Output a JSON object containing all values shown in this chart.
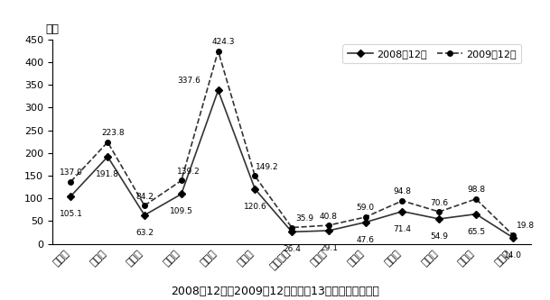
{
  "categories": [
    "南京市",
    "无锡市",
    "徐州市",
    "常州市",
    "苏州市",
    "南通市",
    "连云港市",
    "淮安市",
    "盐城市",
    "扬州市",
    "镇江市",
    "泰州市",
    "宿迁市"
  ],
  "series_2008": [
    105.1,
    191.8,
    63.2,
    109.5,
    337.6,
    120.6,
    26.4,
    29.1,
    47.6,
    71.4,
    54.9,
    65.5,
    14.0
  ],
  "series_2009": [
    137.0,
    223.8,
    84.2,
    139.2,
    424.3,
    149.2,
    35.9,
    40.8,
    59.0,
    94.8,
    70.6,
    98.8,
    19.8
  ],
  "label_2008": "2008年12月",
  "label_2009": "2009年12月",
  "ylabel": "亿元",
  "title": "2008年12月与2009年12月江苏省13省辖市工业增加值",
  "ylim": [
    0,
    450
  ],
  "yticks": [
    0,
    50,
    100,
    150,
    200,
    250,
    300,
    350,
    400,
    450
  ],
  "bg_color": "#ffffff",
  "line_color": "#333333",
  "annotation_fontsize": 6.5,
  "axis_fontsize": 8,
  "title_fontsize": 9,
  "legend_fontsize": 8
}
